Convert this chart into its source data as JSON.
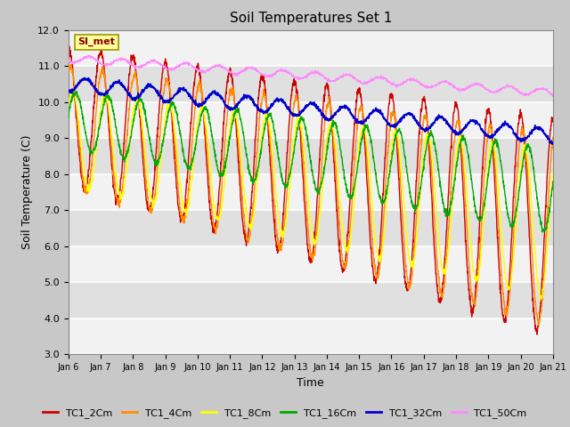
{
  "title": "Soil Temperatures Set 1",
  "xlabel": "Time",
  "ylabel": "Soil Temperature (C)",
  "ylim": [
    3.0,
    12.0
  ],
  "yticks": [
    3.0,
    4.0,
    5.0,
    6.0,
    7.0,
    8.0,
    9.0,
    10.0,
    11.0,
    12.0
  ],
  "xtick_labels": [
    "Jan 6",
    "Jan 7",
    "Jan 8",
    "Jan 9",
    "Jan 10",
    "Jan 11",
    "Jan 12",
    "Jan 13",
    "Jan 14",
    "Jan 15",
    "Jan 16",
    "Jan 17",
    "Jan 18",
    "Jan 19",
    "Jan 20",
    "Jan 21"
  ],
  "annotation_text": "SI_met",
  "annotation_color": "#8B0000",
  "annotation_bg": "#FFFF99",
  "series_colors": [
    "#CC0000",
    "#FF8C00",
    "#FFFF00",
    "#00AA00",
    "#0000CC",
    "#FF88FF"
  ],
  "series_labels": [
    "TC1_2Cm",
    "TC1_4Cm",
    "TC1_8Cm",
    "TC1_16Cm",
    "TC1_32Cm",
    "TC1_50Cm"
  ],
  "fig_facecolor": "#C8C8C8",
  "ax_facecolor": "#E0E0E0",
  "figsize": [
    6.4,
    4.8
  ],
  "dpi": 100,
  "days": 15,
  "n_points": 2000
}
